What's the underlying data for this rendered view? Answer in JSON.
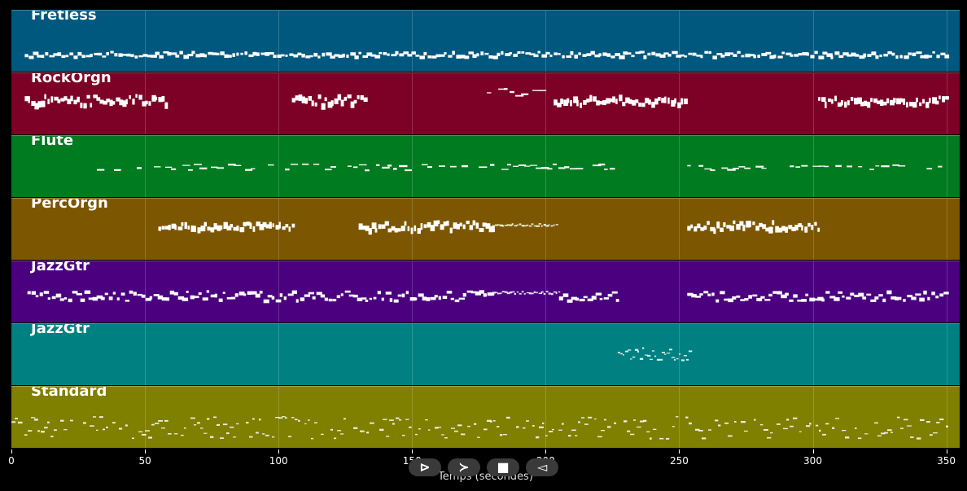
{
  "timeline": {
    "duration_seconds": 355,
    "axis_label": "Temps (secondes)",
    "ticks": [
      0,
      50,
      100,
      150,
      200,
      250,
      300,
      350
    ]
  },
  "tracks": [
    {
      "label": "Fretless",
      "color": "#00587f",
      "segments": [
        {
          "start": 5,
          "end": 350,
          "level": 0.7,
          "amp": 0.04,
          "density": "med"
        }
      ]
    },
    {
      "label": "RockOrgn",
      "color": "#7d0027",
      "segments": [
        {
          "start": 5,
          "end": 58,
          "level": 0.42,
          "amp": 0.08,
          "density": "thick"
        },
        {
          "start": 105,
          "end": 132,
          "level": 0.42,
          "amp": 0.08,
          "density": "thick"
        },
        {
          "start": 178,
          "end": 198,
          "level": 0.3,
          "amp": 0.06,
          "density": "sparse"
        },
        {
          "start": 203,
          "end": 252,
          "level": 0.42,
          "amp": 0.07,
          "density": "thick"
        },
        {
          "start": 302,
          "end": 350,
          "level": 0.42,
          "amp": 0.06,
          "density": "thick"
        }
      ]
    },
    {
      "label": "Flute",
      "color": "#007b20",
      "segments": [
        {
          "start": 32,
          "end": 226,
          "level": 0.5,
          "amp": 0.05,
          "density": "sparse"
        },
        {
          "start": 253,
          "end": 350,
          "level": 0.5,
          "amp": 0.05,
          "density": "sparse"
        }
      ]
    },
    {
      "label": "PercOrgn",
      "color": "#7c5600",
      "segments": [
        {
          "start": 55,
          "end": 105,
          "level": 0.42,
          "amp": 0.05,
          "density": "thick"
        },
        {
          "start": 130,
          "end": 180,
          "level": 0.42,
          "amp": 0.07,
          "density": "thick"
        },
        {
          "start": 180,
          "end": 204,
          "level": 0.42,
          "amp": 0.02,
          "density": "fine"
        },
        {
          "start": 253,
          "end": 302,
          "level": 0.42,
          "amp": 0.07,
          "density": "thick"
        }
      ]
    },
    {
      "label": "JazzGtr",
      "color": "#4b0080",
      "segments": [
        {
          "start": 6,
          "end": 180,
          "level": 0.55,
          "amp": 0.08,
          "density": "med"
        },
        {
          "start": 180,
          "end": 205,
          "level": 0.5,
          "amp": 0.02,
          "density": "fine"
        },
        {
          "start": 205,
          "end": 227,
          "level": 0.55,
          "amp": 0.08,
          "density": "med"
        },
        {
          "start": 253,
          "end": 350,
          "level": 0.55,
          "amp": 0.08,
          "density": "med"
        }
      ]
    },
    {
      "label": "JazzGtr",
      "color": "#008080",
      "segments": [
        {
          "start": 227,
          "end": 254,
          "level": 0.48,
          "amp": 0.1,
          "density": "fine"
        }
      ]
    },
    {
      "label": "Standard",
      "color": "#7f7f00",
      "segments": [
        {
          "start": 0,
          "end": 350,
          "level": 0.66,
          "amp": 0.18,
          "density": "tiny"
        }
      ]
    }
  ],
  "transport": {
    "buttons": [
      {
        "name": "play-button",
        "glyph": "⊳"
      },
      {
        "name": "fast-forward-button",
        "glyph": "≻"
      },
      {
        "name": "stop-button",
        "glyph": "■"
      },
      {
        "name": "rewind-button",
        "glyph": "◅"
      }
    ]
  }
}
